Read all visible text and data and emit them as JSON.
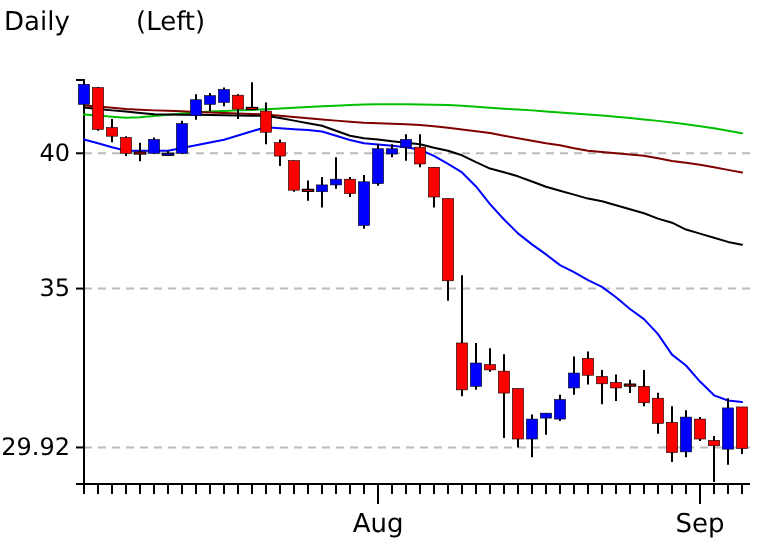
{
  "chart_data": {
    "type": "candlestick",
    "title": "Daily",
    "subtitle": "(Left)",
    "categories": [
      null,
      null,
      null,
      null,
      null,
      null,
      null,
      null,
      null,
      null,
      null,
      null,
      null,
      null,
      null,
      null,
      null,
      null,
      null,
      null,
      null,
      "Aug",
      null,
      null,
      null,
      null,
      null,
      null,
      null,
      null,
      null,
      null,
      null,
      null,
      null,
      null,
      null,
      null,
      null,
      null,
      null,
      null,
      null,
      null,
      "Sep",
      null,
      null,
      null
    ],
    "ohlc": [
      [
        41.98,
        42.9,
        41.9,
        42.82
      ],
      [
        42.68,
        42.7,
        40.9,
        40.95
      ],
      [
        41.03,
        41.38,
        40.44,
        40.68
      ],
      [
        40.63,
        40.68,
        39.89,
        40.0
      ],
      [
        40.05,
        40.42,
        39.69,
        40.0
      ],
      [
        40.0,
        40.63,
        39.97,
        40.55
      ],
      [
        39.98,
        40.1,
        39.92,
        40.0
      ],
      [
        40.0,
        41.3,
        39.97,
        41.19
      ],
      [
        41.51,
        42.4,
        41.35,
        42.17
      ],
      [
        41.98,
        42.45,
        41.7,
        42.34
      ],
      [
        42.06,
        42.68,
        41.9,
        42.6
      ],
      [
        42.36,
        42.4,
        41.38,
        41.78
      ],
      [
        41.85,
        42.9,
        41.78,
        41.83
      ],
      [
        41.7,
        42.06,
        40.36,
        40.84
      ],
      [
        40.42,
        40.55,
        39.5,
        39.89
      ],
      [
        39.71,
        39.72,
        38.51,
        38.57
      ],
      [
        38.6,
        38.94,
        38.17,
        38.59
      ],
      [
        38.51,
        39.07,
        37.92,
        38.77
      ],
      [
        38.77,
        39.84,
        38.62,
        38.99
      ],
      [
        38.99,
        39.07,
        38.31,
        38.44
      ],
      [
        37.25,
        39.15,
        37.13,
        38.89
      ],
      [
        38.82,
        40.36,
        38.74,
        40.18
      ],
      [
        39.97,
        40.36,
        39.84,
        40.18
      ],
      [
        40.24,
        40.76,
        39.71,
        40.55
      ],
      [
        40.24,
        40.76,
        39.45,
        39.58
      ],
      [
        39.45,
        39.45,
        37.92,
        38.31
      ],
      [
        38.25,
        38.25,
        34.58,
        35.27
      ],
      [
        33.17,
        35.46,
        31.47,
        31.67
      ],
      [
        31.78,
        33.17,
        31.67,
        32.52
      ],
      [
        32.47,
        33.0,
        32.24,
        32.3
      ],
      [
        32.26,
        32.8,
        30.2,
        31.57
      ],
      [
        31.71,
        31.71,
        29.92,
        30.17
      ],
      [
        30.17,
        30.91,
        29.63,
        30.77
      ],
      [
        30.8,
        30.95,
        30.3,
        30.95
      ],
      [
        30.77,
        31.52,
        30.71,
        31.37
      ],
      [
        31.73,
        32.73,
        31.52,
        32.2
      ],
      [
        32.67,
        32.89,
        31.84,
        32.13
      ],
      [
        32.09,
        32.3,
        31.22,
        31.86
      ],
      [
        31.9,
        32.15,
        31.32,
        31.73
      ],
      [
        31.85,
        31.99,
        31.57,
        31.84
      ],
      [
        31.78,
        32.3,
        31.16,
        31.27
      ],
      [
        31.41,
        31.58,
        30.33,
        30.64
      ],
      [
        30.67,
        31.16,
        29.49,
        29.77
      ],
      [
        29.79,
        31.04,
        29.63,
        30.83
      ],
      [
        30.77,
        30.83,
        30.11,
        30.17
      ],
      [
        30.13,
        30.26,
        28.92,
        29.97
      ],
      [
        29.87,
        31.41,
        29.41,
        31.11
      ],
      [
        31.14,
        31.14,
        29.73,
        29.89
      ]
    ],
    "colors": [
      "#0000ff",
      "#ff0000",
      "#ff0000",
      "#ff0000",
      "#ff0000",
      "#0000ff",
      "#0000ff",
      "#0000ff",
      "#0000ff",
      "#0000ff",
      "#0000ff",
      "#ff0000",
      "#ff0000",
      "#ff0000",
      "#ff0000",
      "#ff0000",
      "#ff0000",
      "#0000ff",
      "#0000ff",
      "#ff0000",
      "#0000ff",
      "#0000ff",
      "#0000ff",
      "#0000ff",
      "#ff0000",
      "#ff0000",
      "#ff0000",
      "#ff0000",
      "#0000ff",
      "#ff0000",
      "#ff0000",
      "#ff0000",
      "#0000ff",
      "#0000ff",
      "#0000ff",
      "#0000ff",
      "#ff0000",
      "#ff0000",
      "#ff0000",
      "#ff0000",
      "#ff0000",
      "#ff0000",
      "#ff0000",
      "#0000ff",
      "#ff0000",
      "#ff0000",
      "#0000ff",
      "#ff0000"
    ],
    "series": [
      {
        "type": "line",
        "color": "#00c000",
        "values": [
          41.56,
          41.52,
          41.47,
          41.43,
          41.45,
          41.5,
          41.55,
          41.6,
          41.64,
          41.68,
          41.7,
          41.73,
          41.75,
          41.78,
          41.81,
          41.84,
          41.87,
          41.9,
          41.92,
          41.95,
          41.97,
          41.98,
          41.98,
          41.98,
          41.97,
          41.96,
          41.95,
          41.92,
          41.88,
          41.84,
          41.8,
          41.77,
          41.73,
          41.68,
          41.64,
          41.6,
          41.56,
          41.52,
          41.47,
          41.42,
          41.36,
          41.3,
          41.23,
          41.16,
          41.08,
          41.0,
          40.9,
          40.8
        ]
      },
      {
        "type": "line",
        "color": "#800000",
        "values": [
          41.93,
          41.89,
          41.84,
          41.79,
          41.76,
          41.73,
          41.71,
          41.69,
          41.66,
          41.64,
          41.62,
          41.6,
          41.58,
          41.56,
          41.51,
          41.46,
          41.41,
          41.36,
          41.31,
          41.26,
          41.22,
          41.2,
          41.18,
          41.16,
          41.13,
          41.08,
          41.02,
          40.95,
          40.88,
          40.81,
          40.7,
          40.6,
          40.5,
          40.4,
          40.32,
          40.2,
          40.1,
          40.05,
          40.0,
          39.95,
          39.9,
          39.8,
          39.7,
          39.63,
          39.55,
          39.45,
          39.35,
          39.25
        ]
      },
      {
        "type": "line",
        "color": "#000000",
        "values": [
          41.85,
          41.79,
          41.73,
          41.68,
          41.62,
          41.57,
          41.56,
          41.55,
          41.55,
          41.54,
          41.53,
          41.52,
          41.51,
          41.51,
          41.42,
          41.31,
          41.2,
          41.1,
          40.9,
          40.7,
          40.6,
          40.55,
          40.48,
          40.42,
          40.36,
          40.22,
          40.1,
          39.92,
          39.65,
          39.4,
          39.26,
          39.1,
          38.9,
          38.7,
          38.55,
          38.4,
          38.25,
          38.15,
          38.0,
          37.85,
          37.7,
          37.5,
          37.35,
          37.1,
          36.95,
          36.8,
          36.65,
          36.55
        ]
      },
      {
        "type": "line",
        "color": "#0000ff",
        "values": [
          40.55,
          40.4,
          40.24,
          40.1,
          40.1,
          40.1,
          40.1,
          40.21,
          40.32,
          40.43,
          40.54,
          40.71,
          40.88,
          41.04,
          41.0,
          40.96,
          40.93,
          40.87,
          40.7,
          40.53,
          40.4,
          40.35,
          40.3,
          40.24,
          40.14,
          39.9,
          39.58,
          39.25,
          38.71,
          38.04,
          37.47,
          36.96,
          36.56,
          36.2,
          35.82,
          35.57,
          35.29,
          35.06,
          34.7,
          34.3,
          33.96,
          33.46,
          32.79,
          32.44,
          31.93,
          31.5,
          31.34,
          31.29
        ]
      }
    ],
    "ylim": [
      28.86,
      43.0
    ],
    "yticks": [
      40,
      35,
      29.92
    ],
    "log": true,
    "grid": "y"
  }
}
